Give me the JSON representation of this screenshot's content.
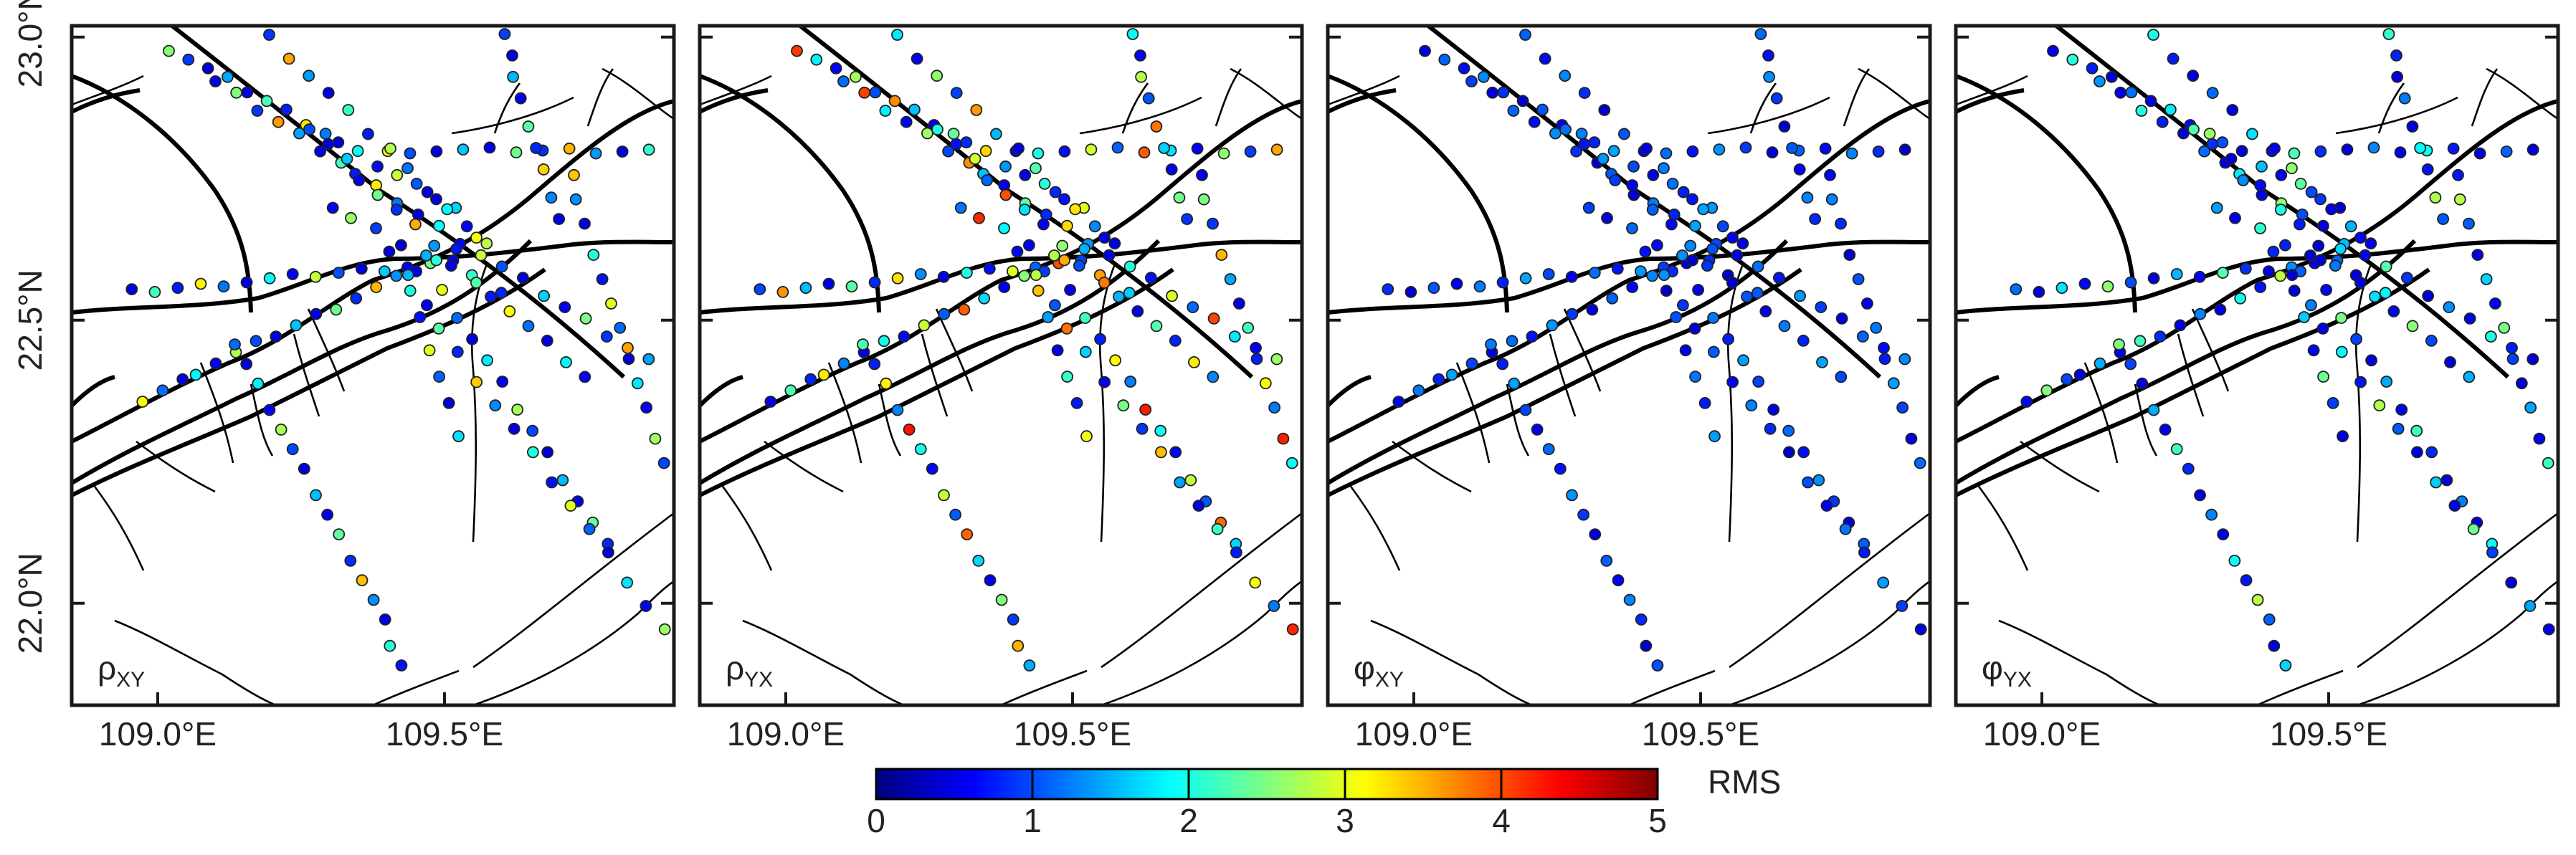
{
  "panels": [
    {
      "label_main": "ρ",
      "label_sub": "XY"
    },
    {
      "label_main": "ρ",
      "label_sub": "YX"
    },
    {
      "label_main": "φ",
      "label_sub": "XY"
    },
    {
      "label_main": "φ",
      "label_sub": "YX"
    }
  ],
  "axes": {
    "x_ticks": [
      {
        "value": 109.0,
        "label": "109.0°E"
      },
      {
        "value": 109.5,
        "label": "109.5°E"
      }
    ],
    "y_ticks": [
      {
        "value": 23.0,
        "label": "23.0°N"
      },
      {
        "value": 22.5,
        "label": "22.5°N"
      },
      {
        "value": 22.0,
        "label": "22.0°N"
      }
    ],
    "x_range": [
      108.85,
      109.9
    ],
    "y_range": [
      21.82,
      23.02
    ]
  },
  "colorbar": {
    "title": "RMS",
    "min": 0,
    "max": 5,
    "ticks": [
      "0",
      "1",
      "2",
      "3",
      "4",
      "5"
    ],
    "colors": [
      "#00007f",
      "#0000ff",
      "#007fff",
      "#00ffff",
      "#7fff7f",
      "#ffff00",
      "#ff7f00",
      "#ff0000",
      "#7f0000"
    ]
  },
  "colors": {
    "frame": "#1a1a1a",
    "fault": "#000000"
  }
}
